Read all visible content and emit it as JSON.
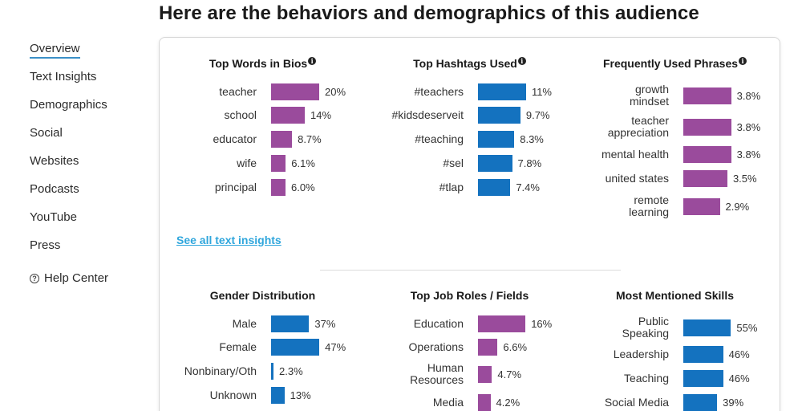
{
  "page_title": "Here are the behaviors and demographics of this audience",
  "sidebar": {
    "items": [
      {
        "label": "Overview",
        "active": true
      },
      {
        "label": "Text Insights"
      },
      {
        "label": "Demographics"
      },
      {
        "label": "Social"
      },
      {
        "label": "Websites"
      },
      {
        "label": "Podcasts"
      },
      {
        "label": "YouTube"
      },
      {
        "label": "Press"
      }
    ],
    "help_label": "Help Center",
    "help_icon": "question-circle-icon"
  },
  "colors": {
    "purple": "#9a4b9c",
    "blue": "#1472bf",
    "link": "#2fa6dc",
    "title": "#1a1a1a"
  },
  "see_all_link": "See all text insights",
  "panels": {
    "top_words": {
      "title": "Top Words in Bios",
      "color": "#9a4b9c",
      "rows": [
        {
          "label": "teacher",
          "value_text": "20%",
          "value": 20
        },
        {
          "label": "school",
          "value_text": "14%",
          "value": 14
        },
        {
          "label": "educator",
          "value_text": "8.7%",
          "value": 8.7
        },
        {
          "label": "wife",
          "value_text": "6.1%",
          "value": 6.1
        },
        {
          "label": "principal",
          "value_text": "6.0%",
          "value": 6.0
        }
      ]
    },
    "top_hashtags": {
      "title": "Top Hashtags Used",
      "color": "#1472bf",
      "rows": [
        {
          "label": "#teachers",
          "value_text": "11%",
          "value": 11
        },
        {
          "label": "#kidsdeserveit",
          "value_text": "9.7%",
          "value": 9.7
        },
        {
          "label": "#teaching",
          "value_text": "8.3%",
          "value": 8.3
        },
        {
          "label": "#sel",
          "value_text": "7.8%",
          "value": 7.8
        },
        {
          "label": "#tlap",
          "value_text": "7.4%",
          "value": 7.4
        }
      ]
    },
    "phrases": {
      "title": "Frequently Used Phrases",
      "color": "#9a4b9c",
      "rows": [
        {
          "label": "growth mindset",
          "lines": [
            "growth",
            "mindset"
          ],
          "value_text": "3.8%",
          "value": 3.8
        },
        {
          "label": "teacher appreciation",
          "lines": [
            "teacher",
            "appreciation"
          ],
          "value_text": "3.8%",
          "value": 3.8
        },
        {
          "label": "mental health",
          "lines": [
            "mental health"
          ],
          "value_text": "3.8%",
          "value": 3.8
        },
        {
          "label": "united states",
          "lines": [
            "united states"
          ],
          "value_text": "3.5%",
          "value": 3.5
        },
        {
          "label": "remote learning",
          "lines": [
            "remote",
            "learning"
          ],
          "value_text": "2.9%",
          "value": 2.9
        }
      ]
    },
    "gender": {
      "title": "Gender Distribution",
      "color": "#1472bf",
      "rows": [
        {
          "label": "Male",
          "value_text": "37%",
          "value": 37
        },
        {
          "label": "Female",
          "value_text": "47%",
          "value": 47
        },
        {
          "label": "Nonbinary/Oth",
          "value_text": "2.3%",
          "value": 2.3
        },
        {
          "label": "Unknown",
          "value_text": "13%",
          "value": 13
        }
      ]
    },
    "job_roles": {
      "title": "Top Job Roles / Fields",
      "color": "#9a4b9c",
      "rows": [
        {
          "label": "Education",
          "lines": [
            "Education"
          ],
          "value_text": "16%",
          "value": 16
        },
        {
          "label": "Operations",
          "lines": [
            "Operations"
          ],
          "value_text": "6.6%",
          "value": 6.6
        },
        {
          "label": "Human Resources",
          "lines": [
            "Human",
            "Resources"
          ],
          "value_text": "4.7%",
          "value": 4.7
        },
        {
          "label": "Media",
          "lines": [
            "Media"
          ],
          "value_text": "4.2%",
          "value": 4.2
        }
      ]
    },
    "skills": {
      "title": "Most Mentioned Skills",
      "color": "#1472bf",
      "rows": [
        {
          "label": "Public Speaking",
          "lines": [
            "Public",
            "Speaking"
          ],
          "value_text": "55%",
          "value": 55
        },
        {
          "label": "Leadership",
          "lines": [
            "Leadership"
          ],
          "value_text": "46%",
          "value": 46
        },
        {
          "label": "Teaching",
          "lines": [
            "Teaching"
          ],
          "value_text": "46%",
          "value": 46
        },
        {
          "label": "Social Media",
          "lines": [
            "Social Media"
          ],
          "value_text": "39%",
          "value": 39
        }
      ]
    }
  }
}
